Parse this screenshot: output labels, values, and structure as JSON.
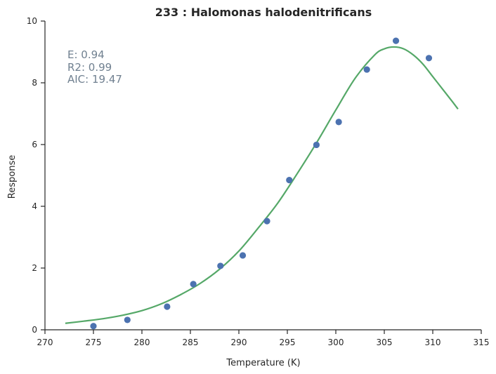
{
  "chart_data": {
    "type": "scatter",
    "title": "233 : Halomonas halodenitrificans",
    "xlabel": "Temperature (K)",
    "ylabel": "Response",
    "xlim": [
      270,
      315
    ],
    "ylim": [
      0,
      10
    ],
    "xticks": [
      270,
      275,
      280,
      285,
      290,
      295,
      300,
      305,
      310,
      315
    ],
    "yticks": [
      0,
      2,
      4,
      6,
      8,
      10
    ],
    "grid": false,
    "annotations": [
      "E:  0.94",
      "R2:  0.99",
      "AIC: 19.47"
    ],
    "series": [
      {
        "type": "scatter",
        "color": "#4c72b0",
        "x": [
          275.0,
          278.5,
          282.6,
          285.3,
          288.1,
          290.4,
          292.9,
          295.2,
          298.0,
          300.3,
          303.2,
          306.2,
          309.6
        ],
        "y": [
          0.12,
          0.32,
          0.75,
          1.48,
          2.07,
          2.41,
          3.52,
          4.85,
          5.99,
          6.73,
          8.43,
          9.36,
          8.8
        ]
      },
      {
        "type": "line",
        "color": "#55a868",
        "x": [
          272.1,
          274.0,
          276.0,
          278.0,
          280.0,
          282.0,
          284.0,
          286.0,
          288.0,
          290.0,
          292.0,
          294.0,
          296.0,
          298.0,
          300.0,
          302.0,
          304.0,
          305.0,
          306.0,
          307.0,
          308.0,
          309.0,
          310.0,
          311.0,
          312.0,
          312.6
        ],
        "y": [
          0.21,
          0.28,
          0.36,
          0.47,
          0.62,
          0.84,
          1.14,
          1.5,
          1.96,
          2.55,
          3.3,
          4.1,
          5.05,
          6.05,
          7.12,
          8.15,
          8.9,
          9.1,
          9.16,
          9.1,
          8.9,
          8.6,
          8.2,
          7.8,
          7.4,
          7.15
        ]
      }
    ]
  }
}
